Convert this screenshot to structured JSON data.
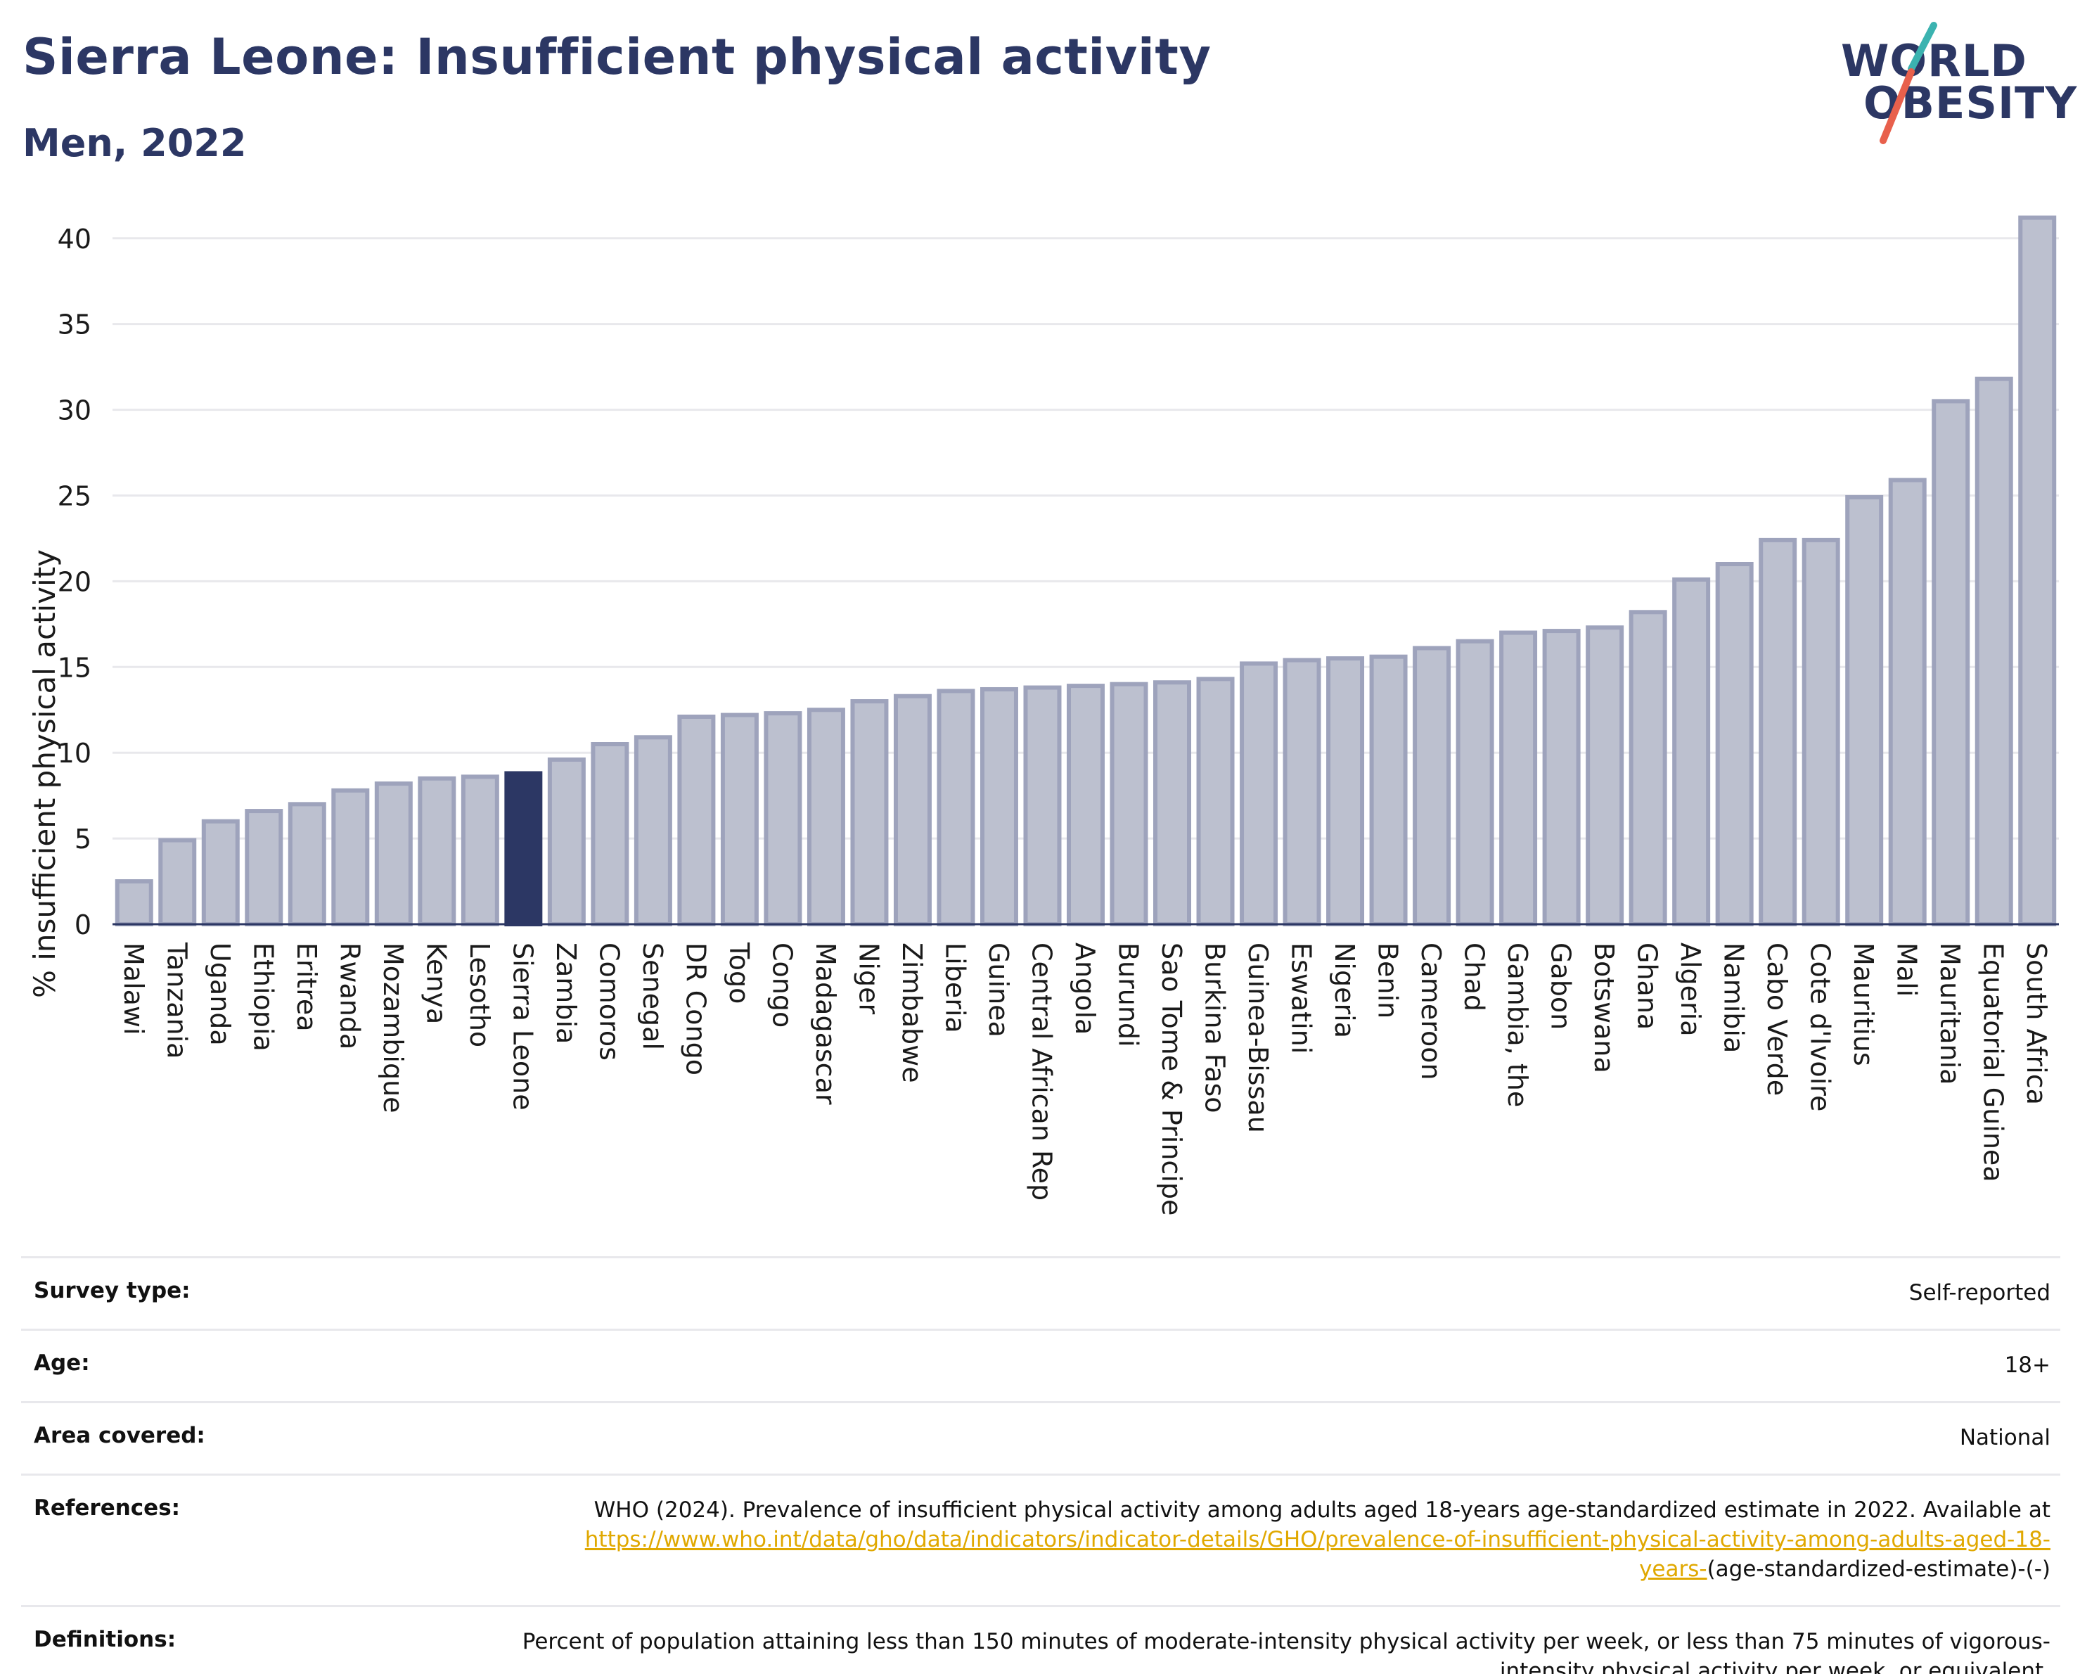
{
  "title": "Sierra Leone: Insufficient physical activity",
  "subtitle": "Men, 2022",
  "logo": {
    "line1": "WORLD",
    "line2": "OBESITY",
    "accent_teal": "#3bb3b0",
    "accent_red": "#e8604c"
  },
  "colors": {
    "bar": "#bcc0cf",
    "bar_border": "#9ea3bc",
    "highlight": "#2c3764",
    "grid": "#e8e8ec",
    "axis": "#2c3764",
    "link": "#e0a800"
  },
  "chart_data": {
    "type": "bar",
    "ylabel": "% insufficient physical activity",
    "ylim": [
      0,
      42
    ],
    "yticks": [
      0,
      5,
      10,
      15,
      20,
      25,
      30,
      35,
      40
    ],
    "grid": true,
    "highlight": "Sierra Leone",
    "categories": [
      "Malawi",
      "Tanzania",
      "Uganda",
      "Ethiopia",
      "Eritrea",
      "Rwanda",
      "Mozambique",
      "Kenya",
      "Lesotho",
      "Sierra Leone",
      "Zambia",
      "Comoros",
      "Senegal",
      "DR Congo",
      "Togo",
      "Congo",
      "Madagascar",
      "Niger",
      "Zimbabwe",
      "Liberia",
      "Guinea",
      "Central African Rep",
      "Angola",
      "Burundi",
      "Sao Tome & Principe",
      "Burkina Faso",
      "Guinea-Bissau",
      "Eswatini",
      "Nigeria",
      "Benin",
      "Cameroon",
      "Chad",
      "Gambia, the",
      "Gabon",
      "Botswana",
      "Ghana",
      "Algeria",
      "Namibia",
      "Cabo Verde",
      "Cote d'Ivoire",
      "Mauritius",
      "Mali",
      "Mauritania",
      "Equatorial Guinea",
      "South Africa"
    ],
    "values": [
      2.5,
      4.9,
      6.0,
      6.6,
      7.0,
      7.8,
      8.2,
      8.5,
      8.6,
      8.8,
      9.6,
      10.5,
      10.9,
      12.1,
      12.2,
      12.3,
      12.5,
      13.0,
      13.3,
      13.6,
      13.7,
      13.8,
      13.9,
      14.0,
      14.1,
      14.3,
      15.2,
      15.4,
      15.5,
      15.6,
      16.1,
      16.5,
      17.0,
      17.1,
      17.3,
      18.2,
      20.1,
      21.0,
      22.4,
      22.4,
      24.9,
      25.9,
      30.5,
      31.8,
      41.2
    ]
  },
  "meta": {
    "survey_type_label": "Survey type:",
    "survey_type": "Self-reported",
    "age_label": "Age:",
    "age": "18+",
    "area_label": "Area covered:",
    "area": "National",
    "references_label": "References:",
    "ref_text": "WHO (2024). Prevalence of insufficient physical activity among adults aged 18-years age-standardized estimate in 2022. Available at",
    "ref_link": "https://www.who.int/data/gho/data/indicators/indicator-details/GHO/prevalence-of-insufficient-physical-activity-among-adults-aged-18-years-",
    "ref_tail": "(age-standardized-estimate)-(-)",
    "definitions_label": "Definitions:",
    "definitions": "Percent of population attaining less than 150 minutes of moderate-intensity physical activity per week, or less than 75 minutes of vigorous-intensity physical activity per week, or equivalent."
  }
}
